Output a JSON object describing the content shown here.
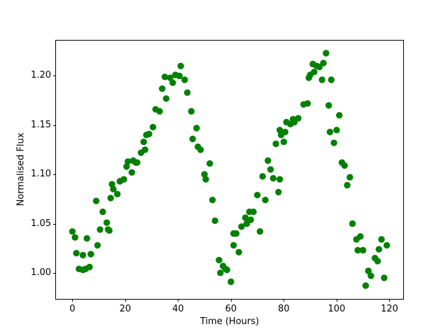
{
  "figure": {
    "background": "#ffffff",
    "chart_data": {
      "type": "scatter",
      "title": "",
      "xlabel": "Time (Hours)",
      "ylabel": "Normalised Flux",
      "marker_color": "#008000",
      "marker_radius_px": 4.7,
      "grid": false,
      "legend_position": "none",
      "xlim": [
        -6.2,
        125.2
      ],
      "ylim": [
        0.9736,
        1.2358
      ],
      "x_ticks": [
        0,
        20,
        40,
        60,
        80,
        100,
        120
      ],
      "x_tick_labels": [
        "0",
        "20",
        "40",
        "60",
        "80",
        "100",
        "120"
      ],
      "y_ticks": [
        1.0,
        1.05,
        1.1,
        1.15,
        1.2
      ],
      "y_tick_labels": [
        "1.00",
        "1.05",
        "1.10",
        "1.15",
        "1.20"
      ],
      "points": [
        [
          0,
          1.042
        ],
        [
          1,
          1.036
        ],
        [
          1.5,
          1.02
        ],
        [
          2.5,
          1.004
        ],
        [
          4,
          1.018
        ],
        [
          4,
          1.003
        ],
        [
          5,
          1.004
        ],
        [
          5.5,
          1.035
        ],
        [
          6.5,
          1.006
        ],
        [
          7,
          1.019
        ],
        [
          9,
          1.073
        ],
        [
          9.5,
          1.028
        ],
        [
          10.5,
          1.044
        ],
        [
          11.5,
          1.062
        ],
        [
          13,
          1.051
        ],
        [
          13.5,
          1.044
        ],
        [
          14,
          1.043
        ],
        [
          14.5,
          1.076
        ],
        [
          15,
          1.09
        ],
        [
          15.5,
          1.085
        ],
        [
          17,
          1.08
        ],
        [
          18,
          1.093
        ],
        [
          19.5,
          1.095
        ],
        [
          20.5,
          1.108
        ],
        [
          21,
          1.113
        ],
        [
          22.5,
          1.102
        ],
        [
          23,
          1.114
        ],
        [
          24,
          1.112
        ],
        [
          24.5,
          1.112
        ],
        [
          26,
          1.122
        ],
        [
          27,
          1.133
        ],
        [
          27.5,
          1.125
        ],
        [
          28,
          1.14
        ],
        [
          29,
          1.141
        ],
        [
          30.5,
          1.148
        ],
        [
          31.5,
          1.166
        ],
        [
          33,
          1.164
        ],
        [
          34,
          1.187
        ],
        [
          35,
          1.199
        ],
        [
          35.5,
          1.177
        ],
        [
          37,
          1.198
        ],
        [
          38,
          1.193
        ],
        [
          39,
          1.201
        ],
        [
          40.5,
          1.2
        ],
        [
          41,
          1.21
        ],
        [
          42.5,
          1.196
        ],
        [
          43.5,
          1.183
        ],
        [
          45,
          1.164
        ],
        [
          45.5,
          1.136
        ],
        [
          47,
          1.147
        ],
        [
          47.5,
          1.128
        ],
        [
          48.5,
          1.125
        ],
        [
          50,
          1.1
        ],
        [
          50.5,
          1.095
        ],
        [
          52,
          1.111
        ],
        [
          53,
          1.074
        ],
        [
          54,
          1.053
        ],
        [
          55.5,
          1.013
        ],
        [
          56,
          1.0
        ],
        [
          57,
          1.007
        ],
        [
          58,
          1.004
        ],
        [
          58.5,
          1.003
        ],
        [
          60,
          0.991
        ],
        [
          61,
          1.04
        ],
        [
          61,
          1.028
        ],
        [
          62,
          1.04
        ],
        [
          63,
          1.021
        ],
        [
          64,
          1.047
        ],
        [
          65.5,
          1.056
        ],
        [
          66,
          1.05
        ],
        [
          67,
          1.062
        ],
        [
          67.5,
          1.054
        ],
        [
          68.5,
          1.062
        ],
        [
          70,
          1.079
        ],
        [
          71,
          1.042
        ],
        [
          72,
          1.098
        ],
        [
          73,
          1.074
        ],
        [
          74,
          1.114
        ],
        [
          75,
          1.105
        ],
        [
          76,
          1.096
        ],
        [
          77,
          1.131
        ],
        [
          78,
          1.082
        ],
        [
          78.5,
          1.145
        ],
        [
          78.5,
          1.095
        ],
        [
          79,
          1.14
        ],
        [
          80,
          1.133
        ],
        [
          80.5,
          1.143
        ],
        [
          81,
          1.153
        ],
        [
          82.5,
          1.151
        ],
        [
          83.5,
          1.156
        ],
        [
          84,
          1.153
        ],
        [
          85.5,
          1.157
        ],
        [
          87.5,
          1.171
        ],
        [
          89,
          1.172
        ],
        [
          89.5,
          1.198
        ],
        [
          90,
          1.201
        ],
        [
          91,
          1.212
        ],
        [
          91.5,
          1.204
        ],
        [
          92.5,
          1.21
        ],
        [
          93.5,
          1.209
        ],
        [
          94.5,
          1.196
        ],
        [
          95,
          1.213
        ],
        [
          96,
          1.223
        ],
        [
          97,
          1.17
        ],
        [
          97.5,
          1.143
        ],
        [
          98,
          1.196
        ],
        [
          99,
          1.132
        ],
        [
          100,
          1.145
        ],
        [
          101,
          1.16
        ],
        [
          102,
          1.112
        ],
        [
          103,
          1.109
        ],
        [
          104,
          1.089
        ],
        [
          105,
          1.097
        ],
        [
          106,
          1.05
        ],
        [
          107.5,
          1.034
        ],
        [
          108,
          1.023
        ],
        [
          109,
          1.037
        ],
        [
          110,
          1.023
        ],
        [
          111,
          0.987
        ],
        [
          112,
          1.002
        ],
        [
          113,
          0.997
        ],
        [
          114.5,
          1.015
        ],
        [
          115.5,
          1.012
        ],
        [
          116,
          1.024
        ],
        [
          117,
          1.034
        ],
        [
          118,
          0.995
        ],
        [
          119,
          1.028
        ]
      ]
    }
  }
}
